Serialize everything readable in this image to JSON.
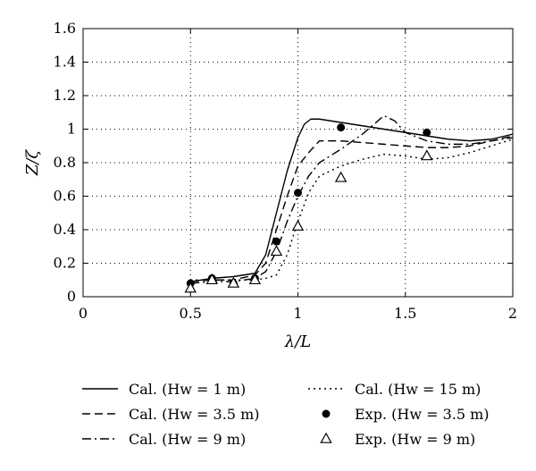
{
  "chart_data": {
    "type": "line",
    "title": "",
    "xlabel": "λ/L",
    "ylabel": "Z/ζ",
    "xlim": [
      0,
      2
    ],
    "ylim": [
      0,
      1.6
    ],
    "x_ticks": [
      0,
      0.5,
      1,
      1.5,
      2
    ],
    "x_tick_labels": [
      "0",
      "0.5",
      "1",
      "1.5",
      "2"
    ],
    "y_ticks": [
      0,
      0.2,
      0.4,
      0.6,
      0.8,
      1.0,
      1.2,
      1.4,
      1.6
    ],
    "y_tick_labels": [
      "0",
      "0.2",
      "0.4",
      "0.6",
      "0.8",
      "1",
      "1.2",
      "1.4",
      "1.6"
    ],
    "grid": true,
    "legend_placement": "below",
    "series": [
      {
        "name": "Cal. (Hw = 1 m)",
        "kind": "line",
        "dash": "solid",
        "x": [
          0.5,
          0.6,
          0.7,
          0.8,
          0.85,
          0.9,
          0.95,
          1.0,
          1.03,
          1.06,
          1.1,
          1.2,
          1.3,
          1.4,
          1.5,
          1.6,
          1.7,
          1.8,
          1.9,
          2.0
        ],
        "y": [
          0.09,
          0.11,
          0.12,
          0.14,
          0.25,
          0.5,
          0.75,
          0.95,
          1.03,
          1.06,
          1.06,
          1.04,
          1.02,
          1.0,
          0.98,
          0.96,
          0.94,
          0.93,
          0.94,
          0.97
        ]
      },
      {
        "name": "Cal. (Hw = 3.5 m)",
        "kind": "line",
        "dash": "dashed",
        "x": [
          0.5,
          0.6,
          0.7,
          0.8,
          0.85,
          0.9,
          0.95,
          1.0,
          1.05,
          1.1,
          1.2,
          1.3,
          1.4,
          1.5,
          1.6,
          1.7,
          1.8,
          1.9,
          2.0
        ],
        "y": [
          0.09,
          0.1,
          0.1,
          0.13,
          0.2,
          0.4,
          0.6,
          0.78,
          0.86,
          0.93,
          0.93,
          0.92,
          0.91,
          0.9,
          0.89,
          0.89,
          0.9,
          0.93,
          0.96
        ]
      },
      {
        "name": "Cal. (Hw = 9 m)",
        "kind": "line",
        "dash": "dashdot",
        "x": [
          0.5,
          0.6,
          0.7,
          0.8,
          0.85,
          0.9,
          0.95,
          1.0,
          1.05,
          1.1,
          1.2,
          1.3,
          1.4,
          1.45,
          1.5,
          1.6,
          1.7,
          1.8,
          1.9,
          2.0
        ],
        "y": [
          0.08,
          0.09,
          0.09,
          0.11,
          0.15,
          0.27,
          0.45,
          0.6,
          0.72,
          0.8,
          0.88,
          0.97,
          1.08,
          1.05,
          0.98,
          0.93,
          0.91,
          0.91,
          0.93,
          0.95
        ]
      },
      {
        "name": "Cal. (Hw = 15 m)",
        "kind": "line",
        "dash": "dotted",
        "x": [
          0.5,
          0.6,
          0.7,
          0.8,
          0.85,
          0.9,
          0.95,
          1.0,
          1.05,
          1.1,
          1.2,
          1.3,
          1.4,
          1.5,
          1.6,
          1.7,
          1.8,
          1.9,
          2.0
        ],
        "y": [
          0.1,
          0.1,
          0.1,
          0.1,
          0.11,
          0.13,
          0.25,
          0.45,
          0.62,
          0.72,
          0.78,
          0.82,
          0.85,
          0.84,
          0.82,
          0.83,
          0.86,
          0.9,
          0.94
        ]
      },
      {
        "name": "Exp. (Hw = 3.5 m)",
        "kind": "marker",
        "marker": "filled-circle",
        "x": [
          0.5,
          0.6,
          0.7,
          0.8,
          0.9,
          1.0,
          1.2,
          1.6
        ],
        "y": [
          0.08,
          0.11,
          0.08,
          0.11,
          0.33,
          0.62,
          1.01,
          0.98
        ]
      },
      {
        "name": "Exp. (Hw = 9 m)",
        "kind": "marker",
        "marker": "open-triangle",
        "x": [
          0.5,
          0.6,
          0.7,
          0.8,
          0.9,
          1.0,
          1.2,
          1.6
        ],
        "y": [
          0.05,
          0.1,
          0.08,
          0.1,
          0.27,
          0.42,
          0.71,
          0.84
        ]
      }
    ]
  }
}
